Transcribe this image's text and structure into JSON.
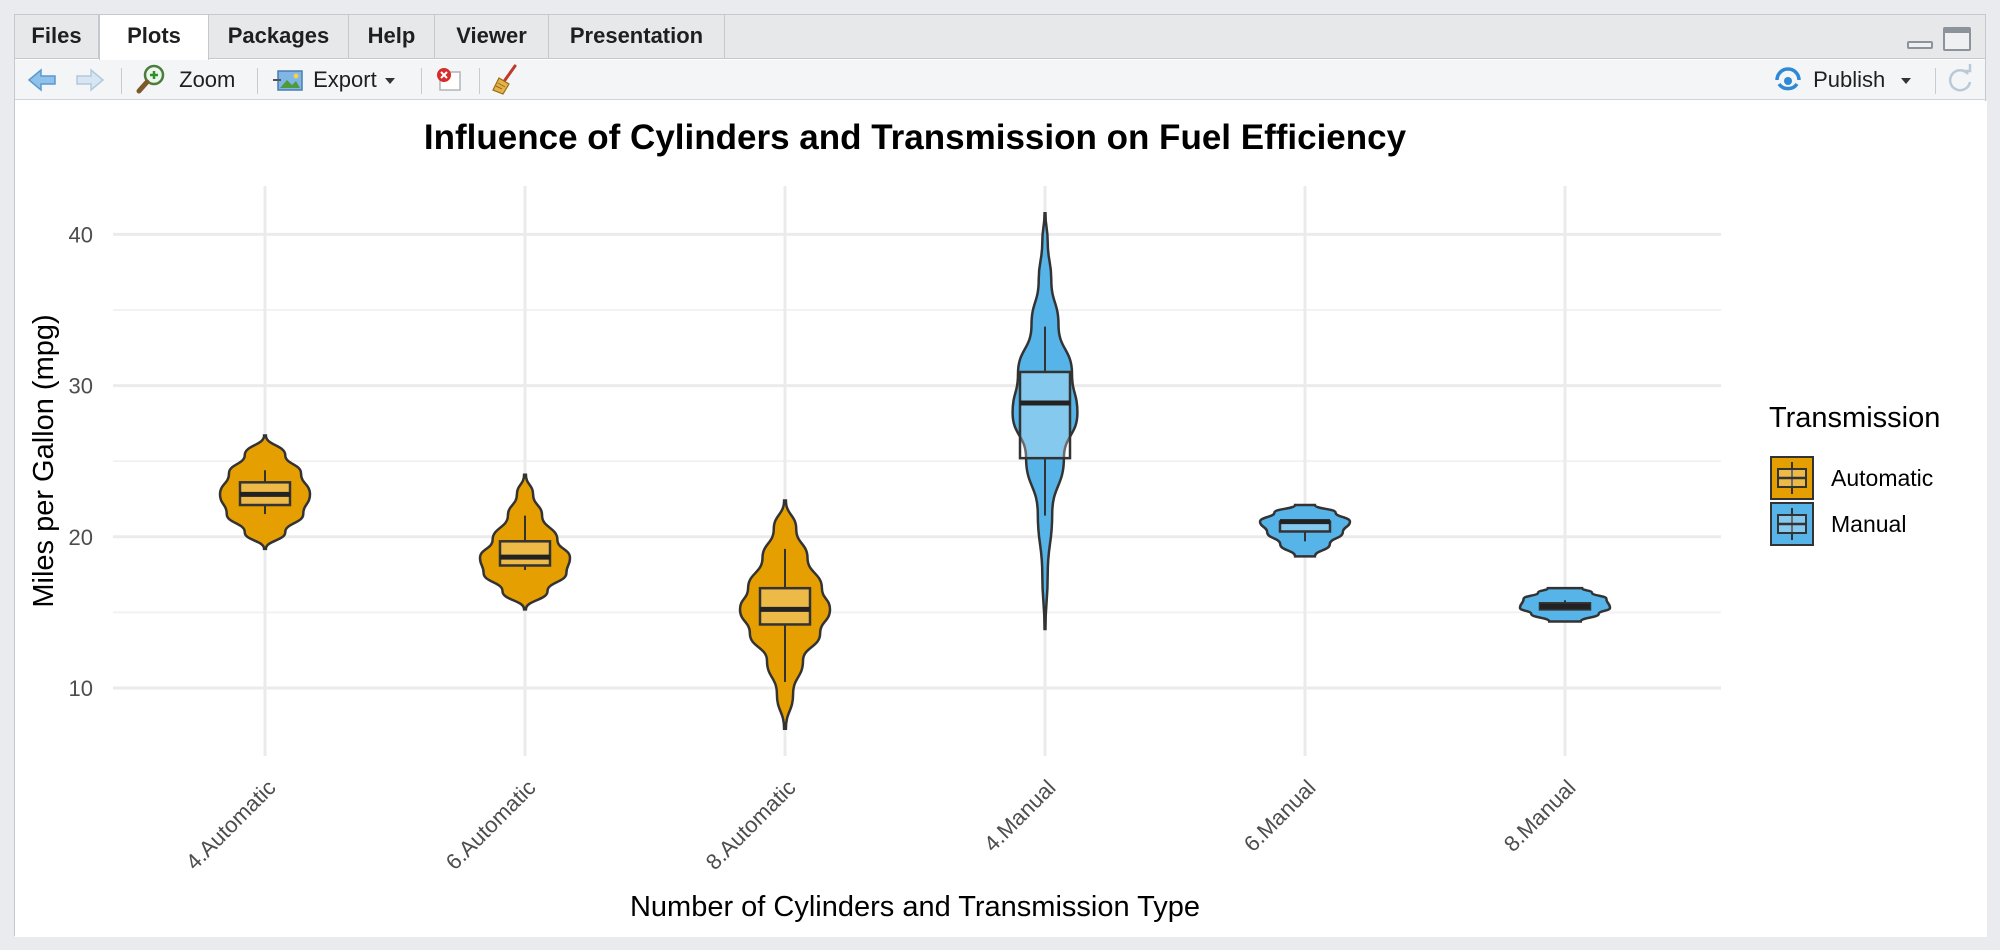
{
  "tabs": [
    {
      "label": "Files",
      "active": false
    },
    {
      "label": "Plots",
      "active": true
    },
    {
      "label": "Packages",
      "active": false
    },
    {
      "label": "Help",
      "active": false
    },
    {
      "label": "Viewer",
      "active": false
    },
    {
      "label": "Presentation",
      "active": false
    }
  ],
  "toolbar": {
    "back_icon": "arrow-left-icon",
    "forward_icon": "arrow-right-icon",
    "zoom_label": "Zoom",
    "export_label": "Export",
    "remove_icon": "remove-plot-icon",
    "clear_icon": "broom-icon",
    "publish_label": "Publish",
    "refresh_icon": "refresh-icon"
  },
  "colors": {
    "automatic": "#E69F00",
    "manual": "#56B4E9"
  },
  "chart_data": {
    "type": "violin",
    "title": "Influence of Cylinders and Transmission on Fuel Efficiency",
    "xlabel": "Number of Cylinders and Transmission Type",
    "ylabel": "Miles per Gallon (mpg)",
    "ylim": [
      5.5,
      43.2
    ],
    "yticks": [
      10,
      20,
      30,
      40
    ],
    "grid": true,
    "legend": {
      "title": "Transmission",
      "position": "right",
      "entries": [
        "Automatic",
        "Manual"
      ]
    },
    "categories": [
      "4.Automatic",
      "6.Automatic",
      "8.Automatic",
      "4.Manual",
      "6.Manual",
      "8.Manual"
    ],
    "groups": [
      {
        "category": "4.Automatic",
        "transmission": "Automatic",
        "violin": {
          "ymin": 19.2,
          "ymax": 26.7,
          "width_profile": [
            [
              19.2,
              0.02
            ],
            [
              20.3,
              0.45
            ],
            [
              21.5,
              0.85
            ],
            [
              22.8,
              1.0
            ],
            [
              24.2,
              0.8
            ],
            [
              25.4,
              0.45
            ],
            [
              26.7,
              0.02
            ]
          ]
        },
        "box": {
          "lower_whisker": 21.5,
          "q1": 22.1,
          "median": 22.8,
          "q3": 23.6,
          "upper_whisker": 24.4
        }
      },
      {
        "category": "6.Automatic",
        "transmission": "Automatic",
        "violin": {
          "ymin": 15.2,
          "ymax": 24.1,
          "width_profile": [
            [
              15.2,
              0.02
            ],
            [
              16.4,
              0.5
            ],
            [
              17.6,
              0.92
            ],
            [
              18.6,
              1.0
            ],
            [
              19.8,
              0.72
            ],
            [
              21.4,
              0.38
            ],
            [
              22.8,
              0.18
            ],
            [
              24.1,
              0.02
            ]
          ]
        },
        "box": {
          "lower_whisker": 17.8,
          "q1": 18.1,
          "median": 18.65,
          "q3": 19.7,
          "upper_whisker": 21.4
        }
      },
      {
        "category": "8.Automatic",
        "transmission": "Automatic",
        "violin": {
          "ymin": 7.3,
          "ymax": 22.4,
          "width_profile": [
            [
              7.3,
              0.02
            ],
            [
              9.6,
              0.18
            ],
            [
              11.8,
              0.4
            ],
            [
              13.6,
              0.78
            ],
            [
              15.2,
              1.0
            ],
            [
              16.6,
              0.82
            ],
            [
              18.6,
              0.5
            ],
            [
              20.5,
              0.25
            ],
            [
              22.4,
              0.02
            ]
          ]
        },
        "box": {
          "lower_whisker": 10.4,
          "q1": 14.2,
          "median": 15.2,
          "q3": 16.6,
          "upper_whisker": 19.2
        }
      },
      {
        "category": "4.Manual",
        "transmission": "Manual",
        "violin": {
          "ymin": 13.9,
          "ymax": 41.4,
          "width_profile": [
            [
              13.9,
              0.01
            ],
            [
              17.5,
              0.06
            ],
            [
              21.5,
              0.16
            ],
            [
              25.2,
              0.42
            ],
            [
              28.2,
              0.72
            ],
            [
              30.8,
              0.6
            ],
            [
              34.0,
              0.3
            ],
            [
              37.0,
              0.14
            ],
            [
              39.5,
              0.06
            ],
            [
              41.4,
              0.01
            ]
          ]
        },
        "box": {
          "lower_whisker": 21.4,
          "q1": 25.2,
          "median": 28.85,
          "q3": 30.9,
          "upper_whisker": 33.9
        }
      },
      {
        "category": "6.Manual",
        "transmission": "Manual",
        "violin": {
          "ymin": 18.7,
          "ymax": 22.1,
          "width_profile": [
            [
              18.7,
              0.22
            ],
            [
              19.5,
              0.55
            ],
            [
              20.3,
              0.84
            ],
            [
              21.0,
              1.0
            ],
            [
              21.6,
              0.68
            ],
            [
              22.1,
              0.22
            ]
          ]
        },
        "box": {
          "lower_whisker": 19.7,
          "q1": 20.35,
          "median": 21.0,
          "q3": 21.0,
          "upper_whisker": 21.0
        }
      },
      {
        "category": "8.Manual",
        "transmission": "Manual",
        "violin": {
          "ymin": 14.4,
          "ymax": 16.6,
          "width_profile": [
            [
              14.4,
              0.35
            ],
            [
              14.9,
              0.75
            ],
            [
              15.3,
              1.0
            ],
            [
              15.9,
              0.92
            ],
            [
              16.3,
              0.6
            ],
            [
              16.6,
              0.38
            ]
          ]
        },
        "box": {
          "lower_whisker": 15.2,
          "q1": 15.2,
          "median": 15.4,
          "q3": 15.6,
          "upper_whisker": 15.8
        }
      }
    ]
  }
}
